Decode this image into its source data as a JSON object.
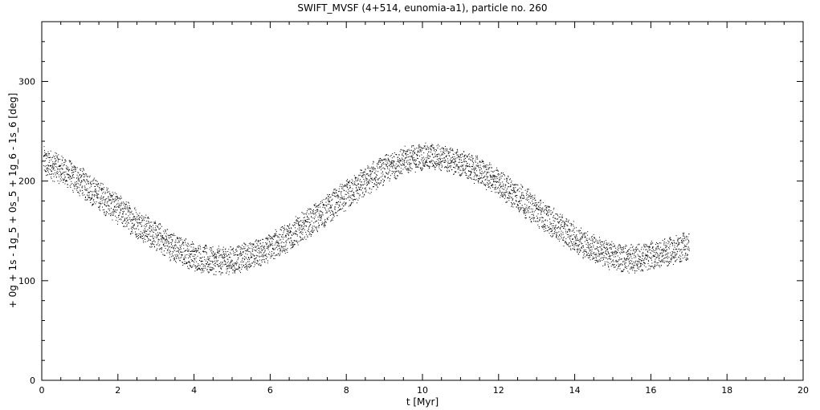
{
  "chart_data": {
    "type": "scatter",
    "title": "SWIFT_MVSF (4+514, eunomia-a1), particle no. 260",
    "xlabel": "t [Myr]",
    "ylabel": "+ 0g + 1s - 1g_5 + 0s_5 + 1g_6 - 1s_6 [deg]",
    "xlim": [
      0,
      20
    ],
    "ylim": [
      0,
      360
    ],
    "x_ticks": [
      "0",
      "2",
      "4",
      "6",
      "8",
      "10",
      "12",
      "14",
      "16",
      "18",
      "20"
    ],
    "y_ticks": [
      "0",
      "100",
      "200",
      "300"
    ],
    "grid": false,
    "point_color": "#000000",
    "series": [
      {
        "x": [
          0.0,
          0.5,
          1.0,
          1.5,
          2.0,
          2.5,
          3.0,
          3.5,
          4.0,
          4.5,
          5.0,
          5.5,
          6.0,
          6.5,
          7.0,
          7.5,
          8.0,
          8.5,
          9.0,
          9.5,
          10.0,
          10.5,
          11.0,
          11.5,
          12.0,
          12.5,
          13.0,
          13.5,
          14.0,
          14.5,
          15.0,
          15.5,
          16.0,
          16.5,
          17.0
        ],
        "y": [
          220,
          212,
          200,
          186,
          172,
          158,
          145,
          133,
          124,
          120,
          121,
          126,
          134,
          145,
          158,
          172,
          186,
          200,
          212,
          221,
          225,
          224,
          218,
          210,
          198,
          185,
          170,
          156,
          143,
          132,
          125,
          122,
          125,
          130,
          136
        ],
        "spread": [
          14,
          14,
          14,
          14,
          14,
          14,
          14,
          14,
          13,
          13,
          13,
          13,
          14,
          14,
          14,
          14,
          14,
          14,
          13,
          13,
          12,
          12,
          12,
          13,
          13,
          14,
          14,
          14,
          14,
          13,
          13,
          13,
          13,
          13,
          13
        ]
      }
    ]
  }
}
